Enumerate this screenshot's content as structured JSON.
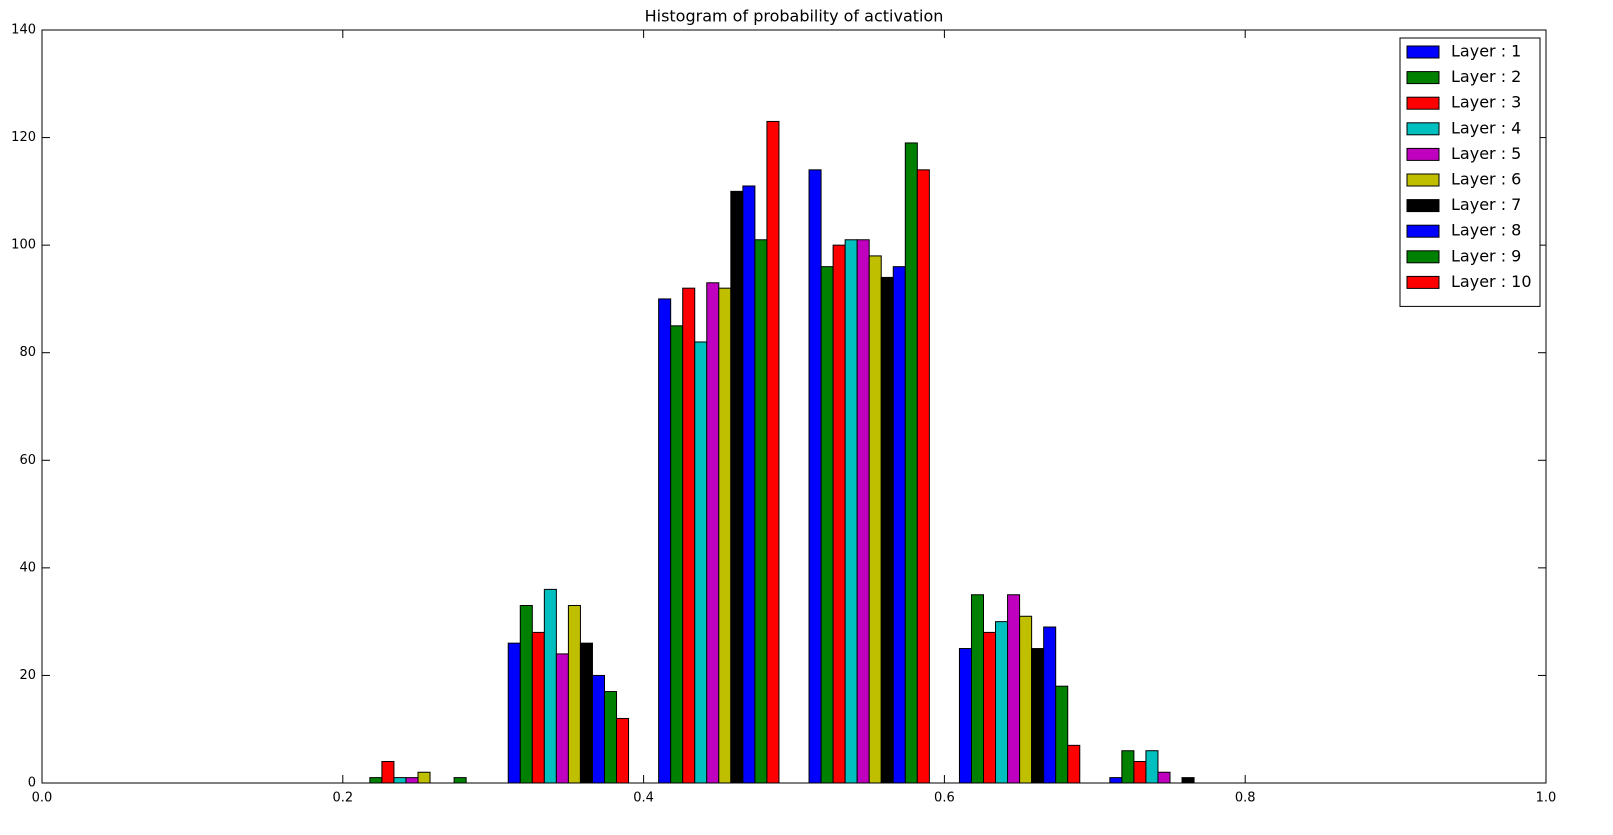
{
  "chart_data": {
    "type": "histogram",
    "title": "Histogram of probability of activation",
    "bins": [
      0.0,
      0.1,
      0.2,
      0.3,
      0.4,
      0.5,
      0.6,
      0.7,
      0.8,
      0.9,
      1.0
    ],
    "series": [
      {
        "name": "Layer : 1",
        "color": "#0000ff",
        "values": [
          0,
          0,
          0,
          26,
          90,
          114,
          25,
          1,
          0,
          0
        ]
      },
      {
        "name": "Layer : 2",
        "color": "#008000",
        "values": [
          0,
          0,
          1,
          33,
          85,
          96,
          35,
          6,
          0,
          0
        ]
      },
      {
        "name": "Layer : 3",
        "color": "#ff0000",
        "values": [
          0,
          0,
          4,
          28,
          92,
          100,
          28,
          4,
          0,
          0
        ]
      },
      {
        "name": "Layer : 4",
        "color": "#00bfbf",
        "values": [
          0,
          0,
          1,
          36,
          82,
          101,
          30,
          6,
          0,
          0
        ]
      },
      {
        "name": "Layer : 5",
        "color": "#bf00bf",
        "values": [
          0,
          0,
          1,
          24,
          93,
          101,
          35,
          2,
          0,
          0
        ]
      },
      {
        "name": "Layer : 6",
        "color": "#bfbf00",
        "values": [
          0,
          0,
          2,
          33,
          92,
          98,
          31,
          0,
          0,
          0
        ]
      },
      {
        "name": "Layer : 7",
        "color": "#000000",
        "values": [
          0,
          0,
          0,
          26,
          110,
          94,
          25,
          1,
          0,
          0
        ]
      },
      {
        "name": "Layer : 8",
        "color": "#0000ff",
        "values": [
          0,
          0,
          0,
          20,
          111,
          96,
          29,
          0,
          0,
          0
        ]
      },
      {
        "name": "Layer : 9",
        "color": "#008000",
        "values": [
          0,
          0,
          1,
          17,
          101,
          119,
          18,
          0,
          0,
          0
        ]
      },
      {
        "name": "Layer : 10",
        "color": "#ff0000",
        "values": [
          0,
          0,
          0,
          12,
          123,
          114,
          7,
          0,
          0,
          0
        ]
      }
    ],
    "xlim": [
      0.0,
      1.0
    ],
    "xticks": [
      {
        "value": 0.0,
        "label": "0.0"
      },
      {
        "value": 0.2,
        "label": "0.2"
      },
      {
        "value": 0.4,
        "label": "0.4"
      },
      {
        "value": 0.6,
        "label": "0.6"
      },
      {
        "value": 0.8,
        "label": "0.8"
      },
      {
        "value": 1.0,
        "label": "1.0"
      }
    ],
    "ylim": [
      0,
      140
    ],
    "yticks": [
      0,
      20,
      40,
      60,
      80,
      100,
      120,
      140
    ],
    "legend": "upper right"
  }
}
